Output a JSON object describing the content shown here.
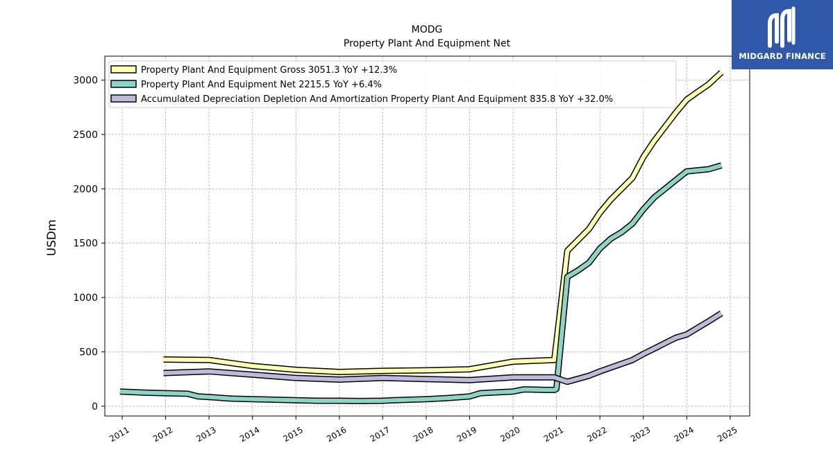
{
  "chart_data": {
    "type": "line",
    "title": "MODG",
    "subtitle": "Property Plant And Equipment Net",
    "xlabel": "",
    "ylabel": "USDm",
    "xlim": [
      2010.6,
      2025.45
    ],
    "ylim": [
      -90,
      3220
    ],
    "x_ticks": [
      "2011",
      "2012",
      "2013",
      "2014",
      "2015",
      "2016",
      "2017",
      "2018",
      "2019",
      "2020",
      "2021",
      "2022",
      "2023",
      "2024",
      "2025"
    ],
    "y_ticks": [
      "0",
      "500",
      "1000",
      "1500",
      "2000",
      "2500",
      "3000"
    ],
    "grid": true,
    "legend_position": "top-left",
    "series": [
      {
        "name": "Property Plant And Equipment Gross  3051.3 YoY +12.3%",
        "color": "#ffffb3",
        "points": [
          [
            2011.95,
            430
          ],
          [
            2013.0,
            425
          ],
          [
            2014.0,
            370
          ],
          [
            2015.0,
            335
          ],
          [
            2016.0,
            315
          ],
          [
            2017.0,
            325
          ],
          [
            2018.0,
            330
          ],
          [
            2019.0,
            340
          ],
          [
            2020.0,
            410
          ],
          [
            2020.95,
            425
          ],
          [
            2021.25,
            1430
          ],
          [
            2021.75,
            1630
          ],
          [
            2022.0,
            1780
          ],
          [
            2022.25,
            1900
          ],
          [
            2022.75,
            2100
          ],
          [
            2023.0,
            2290
          ],
          [
            2023.25,
            2440
          ],
          [
            2023.75,
            2700
          ],
          [
            2024.0,
            2820
          ],
          [
            2024.25,
            2890
          ],
          [
            2024.5,
            2960
          ],
          [
            2024.8,
            3070
          ]
        ]
      },
      {
        "name": "Property Plant And Equipment Net  2215.5 YoY +6.4%",
        "color": "#8dd3c7",
        "points": [
          [
            2010.95,
            135
          ],
          [
            2011.5,
            125
          ],
          [
            2012.0,
            120
          ],
          [
            2012.5,
            115
          ],
          [
            2012.75,
            90
          ],
          [
            2013.0,
            85
          ],
          [
            2013.5,
            70
          ],
          [
            2014.0,
            65
          ],
          [
            2014.5,
            60
          ],
          [
            2015.0,
            55
          ],
          [
            2015.5,
            50
          ],
          [
            2016.0,
            50
          ],
          [
            2016.5,
            48
          ],
          [
            2017.0,
            50
          ],
          [
            2017.25,
            55
          ],
          [
            2017.5,
            58
          ],
          [
            2018.0,
            65
          ],
          [
            2018.5,
            75
          ],
          [
            2019.0,
            90
          ],
          [
            2019.25,
            120
          ],
          [
            2019.5,
            125
          ],
          [
            2020.0,
            135
          ],
          [
            2020.25,
            155
          ],
          [
            2020.75,
            150
          ],
          [
            2020.95,
            150
          ],
          [
            2021.0,
            160
          ],
          [
            2021.25,
            1190
          ],
          [
            2021.5,
            1250
          ],
          [
            2021.75,
            1320
          ],
          [
            2022.0,
            1450
          ],
          [
            2022.25,
            1540
          ],
          [
            2022.5,
            1600
          ],
          [
            2022.75,
            1680
          ],
          [
            2023.0,
            1810
          ],
          [
            2023.25,
            1920
          ],
          [
            2023.5,
            2000
          ],
          [
            2023.75,
            2080
          ],
          [
            2024.0,
            2160
          ],
          [
            2024.25,
            2170
          ],
          [
            2024.5,
            2180
          ],
          [
            2024.8,
            2215
          ]
        ]
      },
      {
        "name": "Accumulated Depreciation Depletion And Amortization Property Plant And Equipment  835.8 YoY +32.0%",
        "color": "#bebada",
        "points": [
          [
            2011.95,
            305
          ],
          [
            2013.0,
            320
          ],
          [
            2014.0,
            290
          ],
          [
            2015.0,
            260
          ],
          [
            2016.0,
            245
          ],
          [
            2017.0,
            260
          ],
          [
            2018.0,
            250
          ],
          [
            2019.0,
            240
          ],
          [
            2020.0,
            265
          ],
          [
            2020.95,
            265
          ],
          [
            2021.25,
            225
          ],
          [
            2021.75,
            280
          ],
          [
            2022.0,
            320
          ],
          [
            2022.25,
            355
          ],
          [
            2022.5,
            390
          ],
          [
            2022.75,
            425
          ],
          [
            2023.0,
            480
          ],
          [
            2023.25,
            530
          ],
          [
            2023.5,
            580
          ],
          [
            2023.75,
            630
          ],
          [
            2024.0,
            660
          ],
          [
            2024.25,
            720
          ],
          [
            2024.5,
            780
          ],
          [
            2024.8,
            855
          ]
        ]
      }
    ]
  },
  "logo": {
    "text": "MIDGARD FINANCE"
  }
}
